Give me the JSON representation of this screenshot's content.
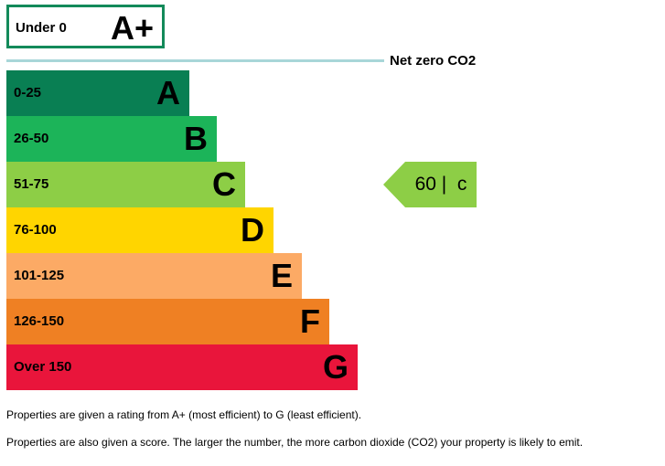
{
  "chart_data": {
    "type": "bar",
    "top_band": {
      "range": "Under 0",
      "letter": "A+",
      "color": "#138a5a"
    },
    "net_zero_label": "Net zero CO2",
    "bands": [
      {
        "range": "0-25",
        "letter": "A",
        "color": "#097f53",
        "relative_length": 0.26
      },
      {
        "range": "26-50",
        "letter": "B",
        "color": "#1cb459",
        "relative_length": 0.3
      },
      {
        "range": "51-75",
        "letter": "C",
        "color": "#8dce46",
        "relative_length": 0.34
      },
      {
        "range": "76-100",
        "letter": "D",
        "color": "#ffd500",
        "relative_length": 0.38
      },
      {
        "range": "101-125",
        "letter": "E",
        "color": "#fcaa65",
        "relative_length": 0.42
      },
      {
        "range": "126-150",
        "letter": "F",
        "color": "#ef8023",
        "relative_length": 0.46
      },
      {
        "range": "Over 150",
        "letter": "G",
        "color": "#e9153b",
        "relative_length": 0.5
      }
    ],
    "current": {
      "score": 60,
      "letter": "c",
      "band": "C",
      "color": "#8dce46"
    }
  },
  "notes": [
    "Properties are given a rating from A+ (most efficient) to G (least efficient).",
    "Properties are also given a score. The larger the number, the more carbon dioxide (CO2) your property is likely to emit."
  ]
}
